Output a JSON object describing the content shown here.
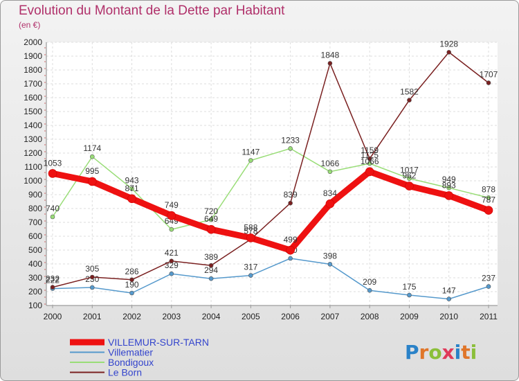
{
  "chart_data": {
    "type": "line",
    "title": "Evolution du Montant de la Dette par Habitant",
    "subtitle": "(en €)",
    "categories": [
      "2000",
      "2001",
      "2002",
      "2003",
      "2004",
      "2005",
      "2006",
      "2007",
      "2008",
      "2009",
      "2010",
      "2011"
    ],
    "ylim": [
      100,
      2000
    ],
    "yticks": [
      100,
      200,
      300,
      400,
      500,
      600,
      700,
      800,
      900,
      1000,
      1100,
      1200,
      1300,
      1400,
      1500,
      1600,
      1700,
      1800,
      1900,
      2000
    ],
    "grid": true,
    "legend_position": "bottom-left",
    "series": [
      {
        "name": "Bondigoux",
        "color": "#99dd77",
        "values": [
          740,
          1174,
          943,
          649,
          720,
          1147,
          1233,
          1066,
          1125,
          1017,
          949,
          878
        ]
      },
      {
        "name": "Villematier",
        "color": "#5599cc",
        "values": [
          222,
          230,
          190,
          329,
          294,
          317,
          440,
          398,
          209,
          175,
          147,
          237
        ]
      },
      {
        "name": "Le Born",
        "color": "#7a2020",
        "values": [
          232,
          305,
          286,
          421,
          389,
          578,
          839,
          1848,
          1159,
          1582,
          1928,
          1707
        ]
      },
      {
        "name": "VILLEMUR-SUR-TARN",
        "color": "#ee1111",
        "values": [
          1053,
          995,
          871,
          749,
          649,
          588,
          499,
          834,
          1066,
          962,
          893,
          787
        ]
      }
    ],
    "legend_order": [
      "VILLEMUR-SUR-TARN",
      "Villematier",
      "Bondigoux",
      "Le Born"
    ],
    "legend_text_color": "#3344cc"
  },
  "brand": {
    "text": "Proxiti",
    "letter_colors": [
      "#2a82c8",
      "#e0762a",
      "#8bbf3a",
      "#e03a5a",
      "#2a82c8",
      "#e0762a",
      "#8bbf3a"
    ]
  }
}
